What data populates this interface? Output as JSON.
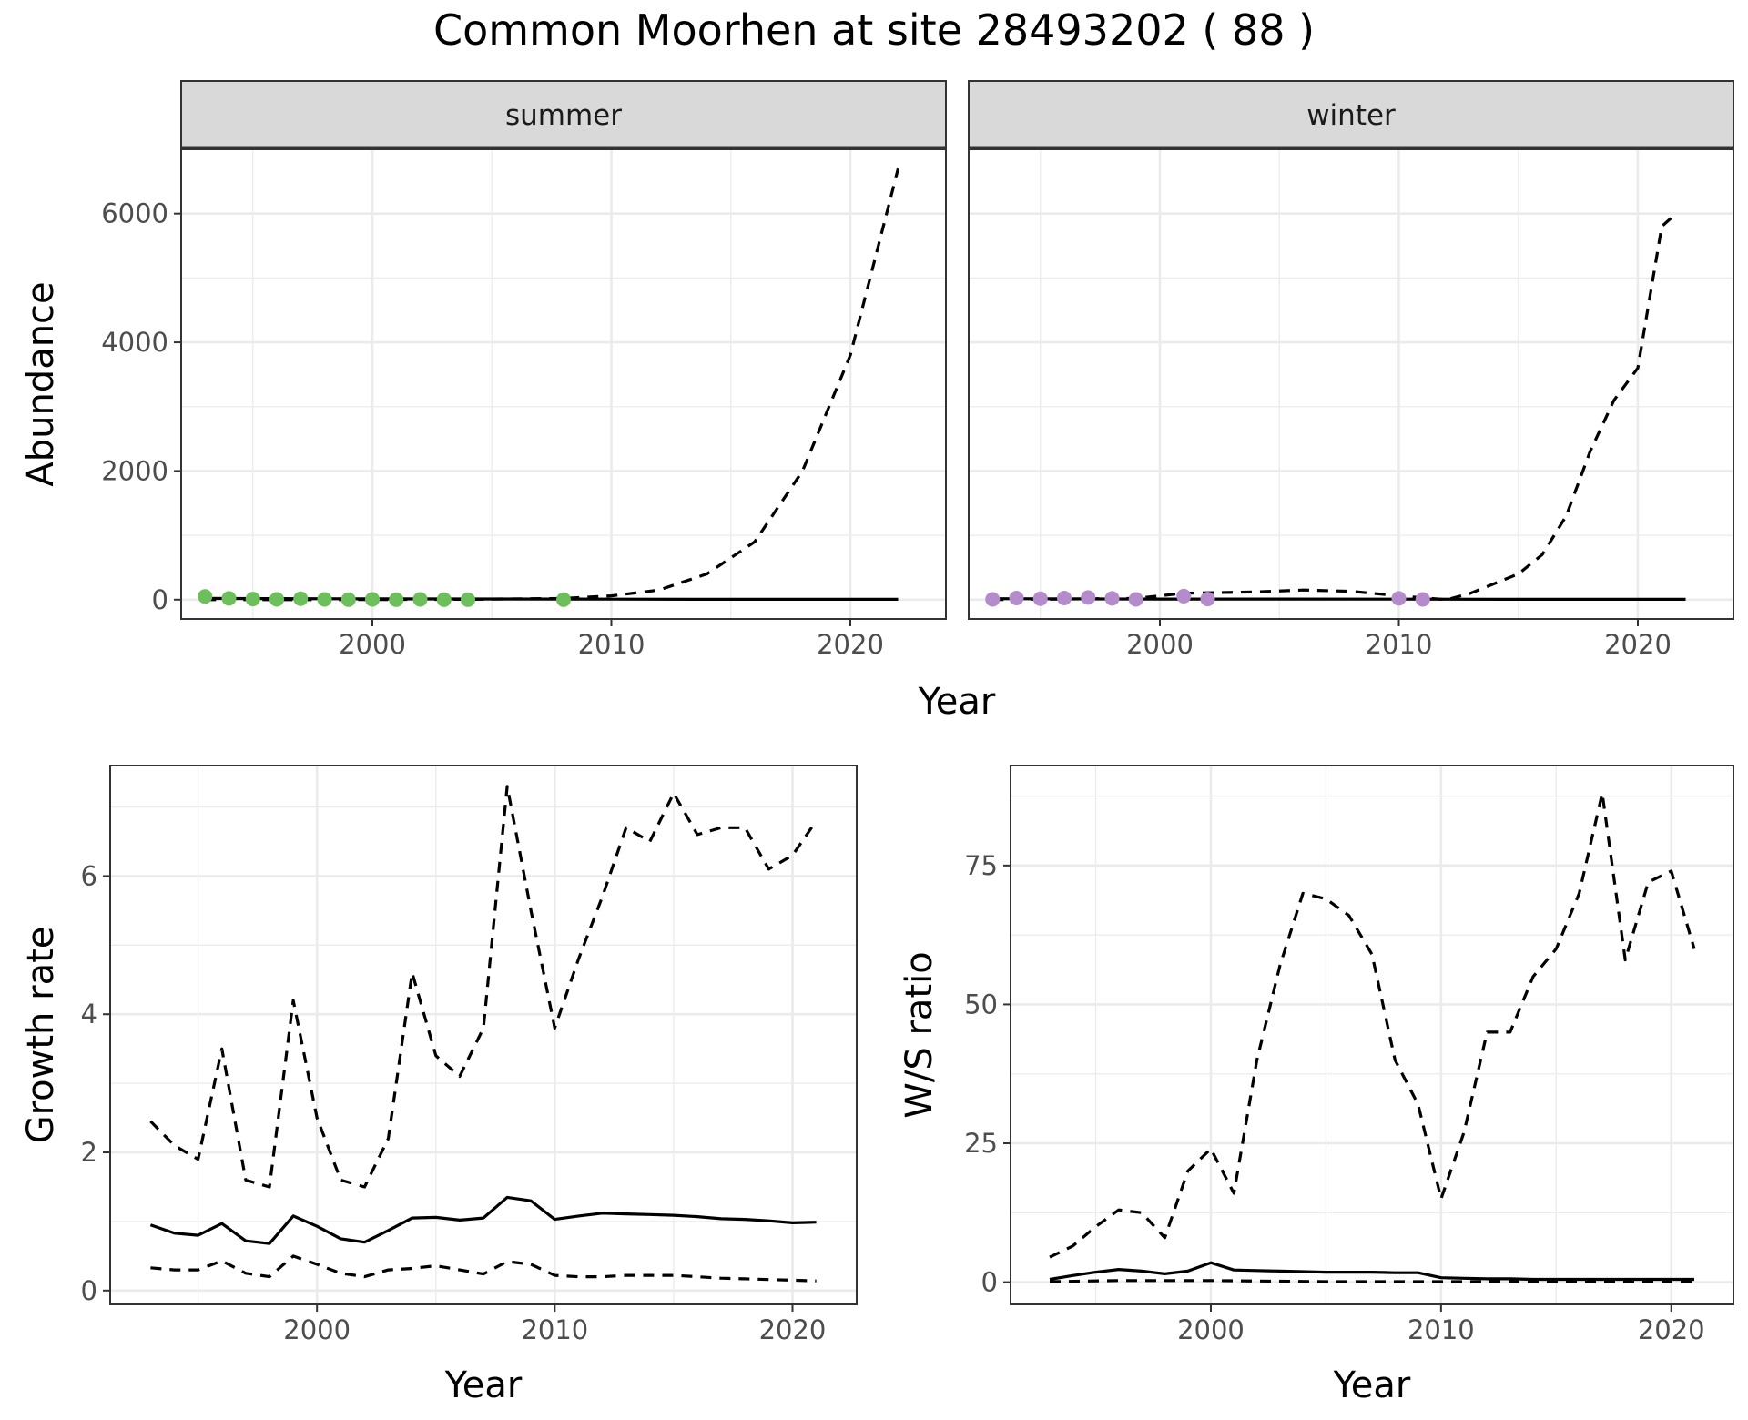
{
  "title": "Common Moorhen at site 28493202 ( 88 )",
  "colors": {
    "summer_points": "#6cbf5a",
    "winter_points": "#b48ccc",
    "strip_fill": "#d9d9d9",
    "grid": "#ebebeb",
    "line": "#000000"
  },
  "chart_data": [
    {
      "id": "abundance",
      "type": "scatter",
      "facet_layout": "facets share y-axis",
      "xlabel": "Year",
      "ylabel": "Abundance",
      "xlim": [
        1992,
        2024
      ],
      "ylim": [
        -300,
        7000
      ],
      "xticks": [
        2000,
        2010,
        2020
      ],
      "yticks": [
        0,
        2000,
        4000,
        6000
      ],
      "grid": true,
      "facets": [
        {
          "strip": "summer",
          "point_color": "#6cbf5a",
          "points": {
            "x": [
              1993,
              1994,
              1995,
              1996,
              1997,
              1998,
              1999,
              2000,
              2001,
              2002,
              2003,
              2004,
              2008
            ],
            "y": [
              50,
              20,
              10,
              5,
              15,
              5,
              0,
              5,
              0,
              5,
              0,
              0,
              0
            ]
          },
          "series": [
            {
              "style": "solid",
              "x": [
                1993,
                2000,
                2010,
                2015,
                2022
              ],
              "y": [
                20,
                12,
                8,
                6,
                5
              ]
            },
            {
              "style": "dashed",
              "x": [
                1993,
                1998,
                2004,
                2008,
                2010,
                2012,
                2014,
                2016,
                2018,
                2020,
                2022
              ],
              "y": [
                0,
                0,
                5,
                20,
                60,
                150,
                400,
                900,
                2000,
                3800,
                6700
              ]
            }
          ]
        },
        {
          "strip": "winter",
          "point_color": "#b48ccc",
          "points": {
            "x": [
              1993,
              1994,
              1995,
              1996,
              1997,
              1998,
              1999,
              2001,
              2002,
              2010,
              2011
            ],
            "y": [
              5,
              25,
              15,
              25,
              35,
              20,
              5,
              55,
              10,
              20,
              5
            ]
          },
          "series": [
            {
              "style": "solid",
              "x": [
                1993,
                2000,
                2010,
                2015,
                2022
              ],
              "y": [
                15,
                10,
                8,
                5,
                5
              ]
            },
            {
              "style": "dashed",
              "x": [
                1993,
                1996,
                1999,
                2001,
                2004,
                2006,
                2008,
                2010,
                2012,
                2013,
                2015,
                2016,
                2017,
                2018,
                2019,
                2020,
                2021,
                2021.6
              ],
              "y": [
                0,
                10,
                20,
                100,
                120,
                150,
                130,
                60,
                0,
                100,
                400,
                700,
                1300,
                2300,
                3100,
                3600,
                5800,
                6000
              ]
            }
          ]
        }
      ]
    },
    {
      "id": "growth",
      "type": "line",
      "xlabel": "Year",
      "ylabel": "Growth rate",
      "xlim": [
        1991.3,
        2022.7
      ],
      "ylim": [
        -0.2,
        7.6
      ],
      "xticks": [
        2000,
        2010,
        2020
      ],
      "yticks": [
        0,
        2,
        4,
        6
      ],
      "grid": true,
      "series": [
        {
          "style": "solid",
          "x": [
            1993,
            1994,
            1995,
            1996,
            1997,
            1998,
            1999,
            2000,
            2001,
            2002,
            2003,
            2004,
            2005,
            2006,
            2007,
            2008,
            2009,
            2010,
            2011,
            2012,
            2013,
            2014,
            2015,
            2016,
            2017,
            2018,
            2019,
            2020,
            2021
          ],
          "y": [
            0.95,
            0.83,
            0.8,
            0.97,
            0.72,
            0.68,
            1.08,
            0.93,
            0.75,
            0.7,
            0.87,
            1.05,
            1.06,
            1.02,
            1.05,
            1.35,
            1.3,
            1.03,
            1.08,
            1.12,
            1.11,
            1.1,
            1.09,
            1.07,
            1.04,
            1.03,
            1.01,
            0.98,
            0.99
          ]
        },
        {
          "style": "dashed",
          "x": [
            1993,
            1994,
            1995,
            1996,
            1997,
            1998,
            1999,
            2000,
            2001,
            2002,
            2003,
            2004,
            2005,
            2006,
            2007,
            2008,
            2009,
            2010,
            2011,
            2012,
            2013,
            2014,
            2015,
            2016,
            2017,
            2018,
            2019,
            2020,
            2021
          ],
          "y": [
            2.45,
            2.1,
            1.9,
            3.5,
            1.6,
            1.5,
            4.2,
            2.5,
            1.6,
            1.5,
            2.2,
            4.6,
            3.4,
            3.1,
            3.8,
            7.3,
            5.5,
            3.8,
            4.8,
            5.7,
            6.7,
            6.5,
            7.2,
            6.6,
            6.7,
            6.7,
            6.1,
            6.3,
            6.8
          ]
        },
        {
          "style": "dashed",
          "x": [
            1993,
            1994,
            1995,
            1996,
            1997,
            1998,
            1999,
            2000,
            2001,
            2002,
            2003,
            2004,
            2005,
            2006,
            2007,
            2008,
            2009,
            2010,
            2011,
            2012,
            2013,
            2014,
            2015,
            2016,
            2017,
            2018,
            2019,
            2020,
            2021
          ],
          "y": [
            0.33,
            0.3,
            0.3,
            0.43,
            0.25,
            0.2,
            0.5,
            0.38,
            0.25,
            0.2,
            0.3,
            0.32,
            0.36,
            0.3,
            0.24,
            0.42,
            0.38,
            0.22,
            0.2,
            0.2,
            0.22,
            0.22,
            0.22,
            0.2,
            0.18,
            0.17,
            0.16,
            0.15,
            0.14
          ]
        }
      ]
    },
    {
      "id": "ratio",
      "type": "line",
      "xlabel": "Year",
      "ylabel": "W/S ratio",
      "xlim": [
        1991.3,
        2022.7
      ],
      "ylim": [
        -4,
        93
      ],
      "xticks": [
        2000,
        2010,
        2020
      ],
      "yticks": [
        0,
        25,
        50,
        75
      ],
      "grid": true,
      "series": [
        {
          "style": "solid",
          "x": [
            1993,
            1994,
            1995,
            1996,
            1997,
            1998,
            1999,
            2000,
            2001,
            2002,
            2003,
            2004,
            2005,
            2006,
            2007,
            2008,
            2009,
            2010,
            2011,
            2012,
            2013,
            2014,
            2015,
            2016,
            2017,
            2018,
            2019,
            2020,
            2021
          ],
          "y": [
            0.5,
            1.2,
            1.8,
            2.3,
            2.0,
            1.5,
            2.0,
            3.5,
            2.2,
            2.1,
            2.0,
            1.9,
            1.8,
            1.8,
            1.8,
            1.7,
            1.7,
            0.8,
            0.7,
            0.6,
            0.6,
            0.5,
            0.5,
            0.5,
            0.5,
            0.5,
            0.5,
            0.5,
            0.5
          ]
        },
        {
          "style": "dashed",
          "x": [
            1993,
            1994,
            1995,
            1996,
            1997,
            1998,
            1999,
            2000,
            2001,
            2002,
            2003,
            2004,
            2005,
            2006,
            2007,
            2008,
            2009,
            2010,
            2011,
            2012,
            2013,
            2014,
            2015,
            2016,
            2017,
            2018,
            2019,
            2020,
            2021
          ],
          "y": [
            4.5,
            6.5,
            10,
            13,
            12.5,
            8,
            20,
            24,
            16,
            40,
            57,
            70,
            69,
            66,
            59,
            40,
            32,
            15,
            27,
            45,
            45,
            55,
            60,
            70,
            88,
            58,
            72,
            74,
            60
          ]
        },
        {
          "style": "dashed",
          "x": [
            1993,
            1996,
            2000,
            2005,
            2010,
            2015,
            2021
          ],
          "y": [
            0.1,
            0.3,
            0.3,
            0.1,
            0.1,
            0.1,
            0.1
          ]
        }
      ]
    }
  ]
}
